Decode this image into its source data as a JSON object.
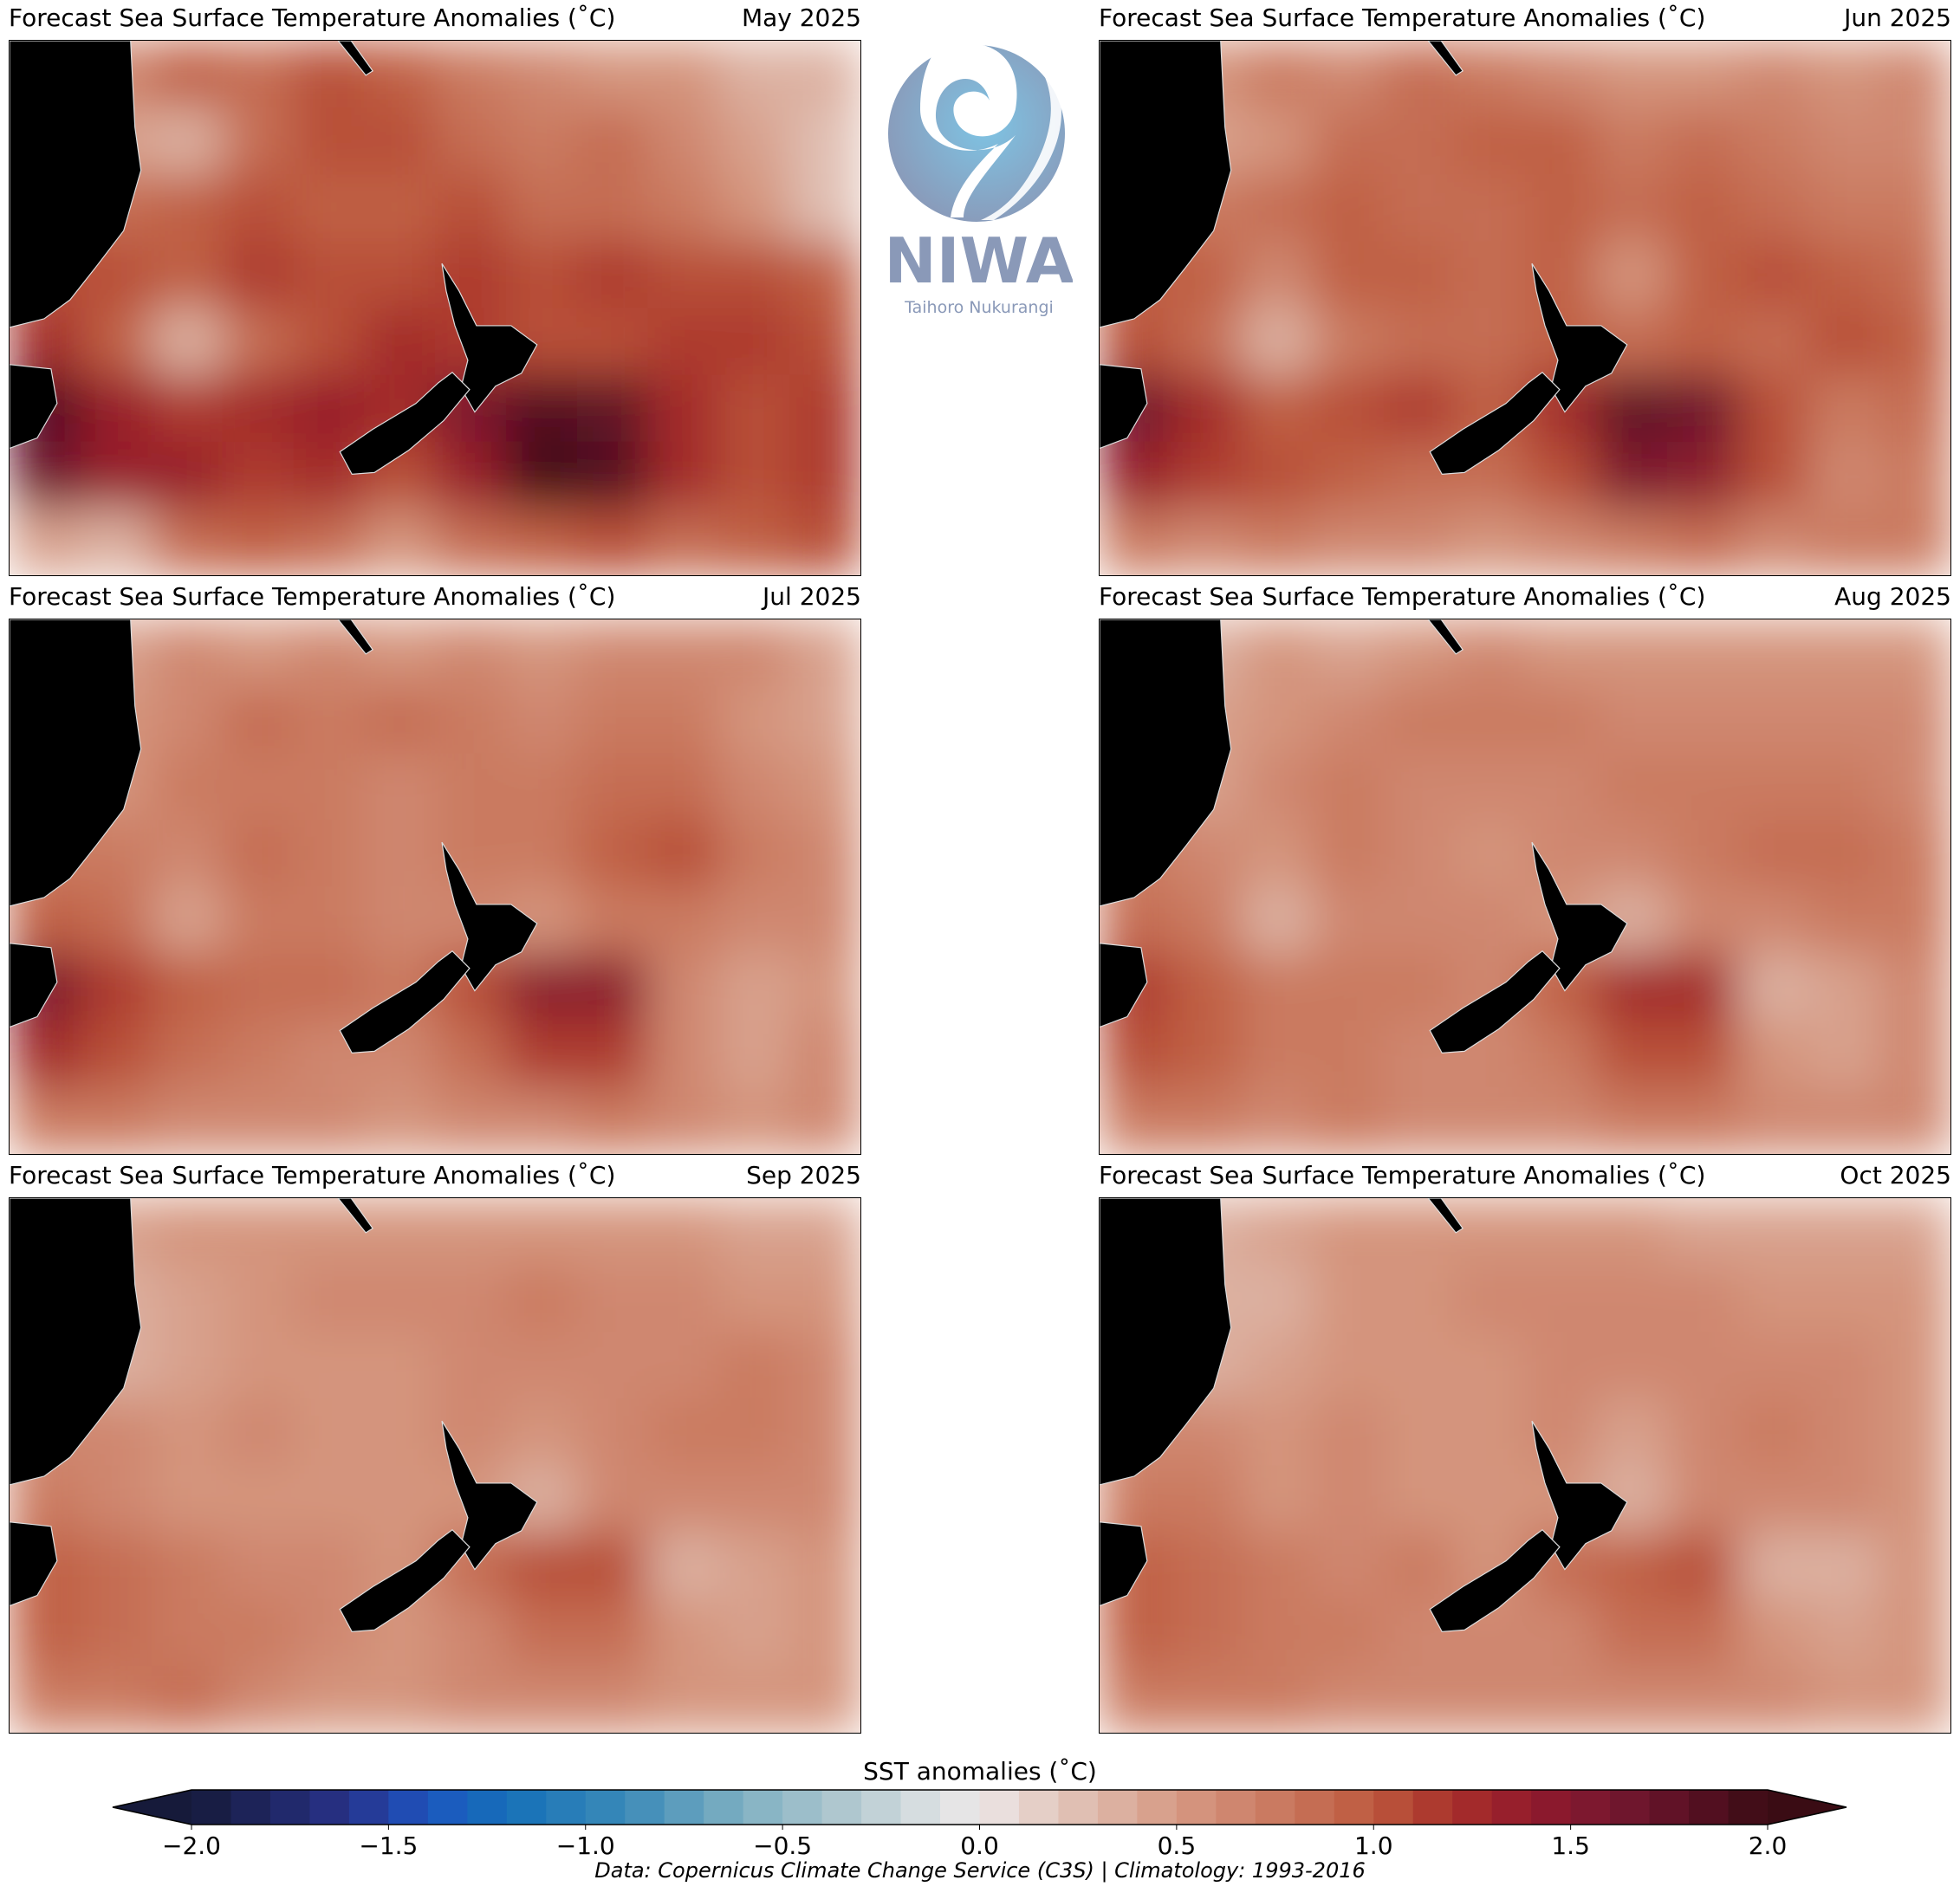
{
  "chart_data": {
    "type": "heatmap",
    "panel_title": "Forecast Sea Surface Temperature Anomalies (˚C)",
    "panels": [
      {
        "month": "May 2025",
        "grid": [
          [
            0.8,
            0.6,
            0.9,
            0.8,
            1.0,
            0.9,
            0.7,
            0.6,
            0.5,
            0.5,
            0.3,
            0.3
          ],
          [
            0.9,
            0.4,
            0.3,
            0.8,
            1.0,
            1.0,
            0.8,
            0.7,
            0.8,
            0.6,
            0.4,
            0.2
          ],
          [
            0.9,
            0.8,
            0.9,
            1.0,
            0.9,
            0.9,
            1.0,
            0.8,
            0.8,
            0.7,
            0.5,
            0.2
          ],
          [
            1.0,
            1.0,
            0.9,
            1.1,
            1.0,
            1.0,
            1.1,
            1.0,
            1.1,
            1.0,
            1.0,
            0.9
          ],
          [
            1.2,
            0.9,
            0.3,
            0.8,
            1.0,
            1.2,
            1.1,
            1.0,
            1.0,
            1.1,
            1.1,
            1.0
          ],
          [
            1.8,
            1.3,
            1.1,
            1.2,
            1.3,
            1.2,
            1.5,
            1.8,
            1.7,
            1.2,
            1.0,
            1.1
          ],
          [
            1.6,
            1.3,
            1.3,
            1.1,
            1.2,
            1.0,
            1.3,
            1.9,
            1.8,
            1.2,
            1.0,
            1.1
          ],
          [
            0.4,
            0.3,
            0.8,
            0.9,
            0.8,
            0.5,
            0.8,
            0.9,
            1.0,
            0.8,
            0.9,
            1.0
          ]
        ]
      },
      {
        "month": "Jun 2025",
        "grid": [
          [
            0.6,
            0.5,
            0.7,
            0.6,
            0.8,
            0.7,
            0.6,
            0.5,
            0.5,
            0.6,
            0.5,
            0.6
          ],
          [
            0.7,
            0.4,
            0.5,
            0.8,
            0.8,
            0.9,
            0.9,
            0.7,
            0.8,
            0.7,
            0.6,
            0.6
          ],
          [
            0.8,
            0.7,
            0.8,
            0.9,
            0.8,
            0.8,
            0.9,
            0.8,
            0.9,
            0.8,
            0.7,
            0.7
          ],
          [
            0.9,
            0.9,
            0.6,
            0.9,
            0.9,
            0.8,
            0.9,
            0.5,
            0.9,
            1.0,
            0.9,
            0.8
          ],
          [
            1.0,
            0.8,
            0.3,
            0.7,
            0.8,
            0.8,
            0.9,
            0.8,
            0.9,
            0.8,
            1.0,
            0.9
          ],
          [
            1.6,
            1.2,
            0.9,
            1.0,
            1.1,
            0.9,
            1.2,
            1.7,
            1.6,
            1.0,
            0.7,
            0.8
          ],
          [
            1.3,
            1.1,
            1.0,
            0.9,
            0.8,
            0.8,
            1.0,
            1.5,
            1.4,
            1.0,
            0.6,
            0.7
          ],
          [
            0.7,
            0.6,
            0.7,
            0.6,
            0.6,
            0.5,
            0.6,
            0.7,
            0.8,
            0.6,
            0.7,
            0.7
          ]
        ]
      },
      {
        "month": "Jul 2025",
        "grid": [
          [
            0.5,
            0.4,
            0.6,
            0.5,
            0.6,
            0.5,
            0.6,
            0.5,
            0.6,
            0.6,
            0.6,
            0.4
          ],
          [
            0.5,
            0.5,
            0.6,
            0.8,
            0.7,
            0.8,
            0.7,
            0.6,
            0.7,
            0.7,
            0.5,
            0.4
          ],
          [
            0.6,
            0.5,
            0.7,
            0.7,
            0.7,
            0.6,
            0.7,
            0.7,
            0.8,
            0.8,
            0.6,
            0.5
          ],
          [
            0.7,
            0.7,
            0.6,
            0.8,
            0.7,
            0.6,
            0.7,
            0.7,
            0.9,
            1.0,
            0.7,
            0.6
          ],
          [
            0.9,
            0.8,
            0.4,
            0.7,
            0.7,
            0.6,
            0.6,
            0.5,
            0.7,
            0.7,
            0.6,
            0.6
          ],
          [
            1.5,
            1.1,
            0.9,
            0.8,
            0.8,
            0.7,
            1.0,
            1.4,
            1.4,
            0.6,
            0.4,
            0.5
          ],
          [
            1.2,
            1.0,
            0.8,
            0.7,
            0.6,
            0.6,
            0.8,
            1.1,
            1.1,
            0.6,
            0.4,
            0.6
          ],
          [
            0.7,
            0.7,
            0.6,
            0.6,
            0.6,
            0.5,
            0.6,
            0.6,
            0.7,
            0.6,
            0.5,
            0.6
          ]
        ]
      },
      {
        "month": "Aug 2025",
        "grid": [
          [
            0.4,
            0.3,
            0.5,
            0.4,
            0.5,
            0.6,
            0.5,
            0.5,
            0.5,
            0.5,
            0.5,
            0.5
          ],
          [
            0.5,
            0.4,
            0.5,
            0.6,
            0.7,
            0.7,
            0.7,
            0.6,
            0.6,
            0.6,
            0.6,
            0.6
          ],
          [
            0.6,
            0.4,
            0.6,
            0.7,
            0.6,
            0.6,
            0.6,
            0.7,
            0.7,
            0.7,
            0.7,
            0.6
          ],
          [
            0.7,
            0.6,
            0.5,
            0.7,
            0.6,
            0.5,
            0.6,
            0.6,
            0.7,
            0.8,
            0.8,
            0.7
          ],
          [
            0.8,
            0.7,
            0.3,
            0.6,
            0.6,
            0.6,
            0.5,
            0.3,
            0.6,
            0.6,
            0.7,
            0.7
          ],
          [
            1.1,
            0.9,
            0.7,
            0.7,
            0.7,
            0.6,
            0.9,
            1.2,
            1.2,
            0.3,
            0.4,
            0.6
          ],
          [
            1.0,
            0.9,
            0.7,
            0.7,
            0.6,
            0.6,
            0.7,
            1.0,
            1.0,
            0.5,
            0.4,
            0.6
          ],
          [
            0.7,
            0.7,
            0.6,
            0.7,
            0.6,
            0.6,
            0.6,
            0.7,
            0.7,
            0.6,
            0.6,
            0.6
          ]
        ]
      },
      {
        "month": "Sep 2025",
        "grid": [
          [
            0.4,
            0.4,
            0.5,
            0.5,
            0.5,
            0.5,
            0.5,
            0.5,
            0.5,
            0.5,
            0.4,
            0.4
          ],
          [
            0.4,
            0.3,
            0.4,
            0.5,
            0.6,
            0.6,
            0.6,
            0.7,
            0.6,
            0.6,
            0.5,
            0.5
          ],
          [
            0.5,
            0.3,
            0.4,
            0.5,
            0.5,
            0.5,
            0.6,
            0.6,
            0.6,
            0.6,
            0.7,
            0.6
          ],
          [
            0.6,
            0.6,
            0.5,
            0.6,
            0.5,
            0.5,
            0.6,
            0.5,
            0.6,
            0.7,
            0.7,
            0.6
          ],
          [
            0.7,
            0.6,
            0.5,
            0.5,
            0.5,
            0.5,
            0.5,
            0.3,
            0.6,
            0.6,
            0.6,
            0.6
          ],
          [
            0.9,
            0.8,
            0.7,
            0.6,
            0.6,
            0.5,
            0.8,
            1.0,
            1.0,
            0.3,
            0.4,
            0.5
          ],
          [
            0.9,
            0.8,
            0.7,
            0.7,
            0.6,
            0.5,
            0.6,
            0.8,
            0.8,
            0.5,
            0.4,
            0.5
          ],
          [
            0.7,
            0.7,
            0.8,
            0.6,
            0.5,
            0.5,
            0.6,
            0.6,
            0.6,
            0.5,
            0.5,
            0.5
          ]
        ]
      },
      {
        "month": "Oct 2025",
        "grid": [
          [
            0.4,
            0.3,
            0.4,
            0.5,
            0.5,
            0.5,
            0.5,
            0.5,
            0.4,
            0.4,
            0.4,
            0.4
          ],
          [
            0.4,
            0.3,
            0.3,
            0.5,
            0.5,
            0.6,
            0.6,
            0.6,
            0.6,
            0.5,
            0.5,
            0.5
          ],
          [
            0.5,
            0.3,
            0.4,
            0.5,
            0.5,
            0.5,
            0.6,
            0.6,
            0.6,
            0.6,
            0.6,
            0.5
          ],
          [
            0.6,
            0.6,
            0.5,
            0.6,
            0.5,
            0.5,
            0.6,
            0.4,
            0.6,
            0.7,
            0.6,
            0.5
          ],
          [
            0.7,
            0.7,
            0.5,
            0.6,
            0.5,
            0.5,
            0.5,
            0.3,
            0.6,
            0.6,
            0.6,
            0.5
          ],
          [
            0.9,
            0.8,
            0.7,
            0.6,
            0.7,
            0.5,
            0.8,
            0.9,
            1.0,
            0.3,
            0.3,
            0.5
          ],
          [
            0.9,
            0.8,
            0.7,
            0.7,
            0.6,
            0.6,
            0.6,
            0.8,
            0.8,
            0.5,
            0.4,
            0.5
          ],
          [
            0.7,
            0.7,
            0.7,
            0.6,
            0.6,
            0.6,
            0.6,
            0.6,
            0.6,
            0.6,
            0.5,
            0.5
          ]
        ]
      }
    ],
    "land_color": "#000000",
    "colorbar": {
      "title": "SST anomalies (˚C)",
      "range": [
        -2.0,
        2.0
      ],
      "step": 0.1,
      "extend": "both",
      "ticks": [
        "−2.0",
        "−1.5",
        "−1.0",
        "−0.5",
        "0.0",
        "0.5",
        "1.0",
        "1.5",
        "2.0"
      ],
      "tick_values": [
        -2.0,
        -1.5,
        -1.0,
        -0.5,
        0.0,
        0.5,
        1.0,
        1.5,
        2.0
      ],
      "color_stops": [
        [
          -2.0,
          "#161a3a"
        ],
        [
          -1.6,
          "#28328a"
        ],
        [
          -1.4,
          "#1d55c0"
        ],
        [
          -1.2,
          "#1570b8"
        ],
        [
          -0.9,
          "#3a8ab8"
        ],
        [
          -0.6,
          "#7fb0c2"
        ],
        [
          -0.3,
          "#b8ccd2"
        ],
        [
          -0.1,
          "#e0e2e4"
        ],
        [
          0.0,
          "#ece8e8"
        ],
        [
          0.2,
          "#e2c6bc"
        ],
        [
          0.5,
          "#d69a84"
        ],
        [
          0.8,
          "#c8735a"
        ],
        [
          1.0,
          "#bd5a3e"
        ],
        [
          1.2,
          "#a8302a"
        ],
        [
          1.4,
          "#921a2c"
        ],
        [
          1.6,
          "#761830"
        ],
        [
          1.8,
          "#5a1024"
        ],
        [
          2.0,
          "#3a0c14"
        ]
      ]
    }
  },
  "logo": {
    "name": "NIWA",
    "tagline": "Taihoro Nukurangi",
    "color": "#8a99b8",
    "accent": "#7ec4e4"
  },
  "credit": "Data: Copernicus Climate Change Service (C3S) | Climatology: 1993-2016"
}
